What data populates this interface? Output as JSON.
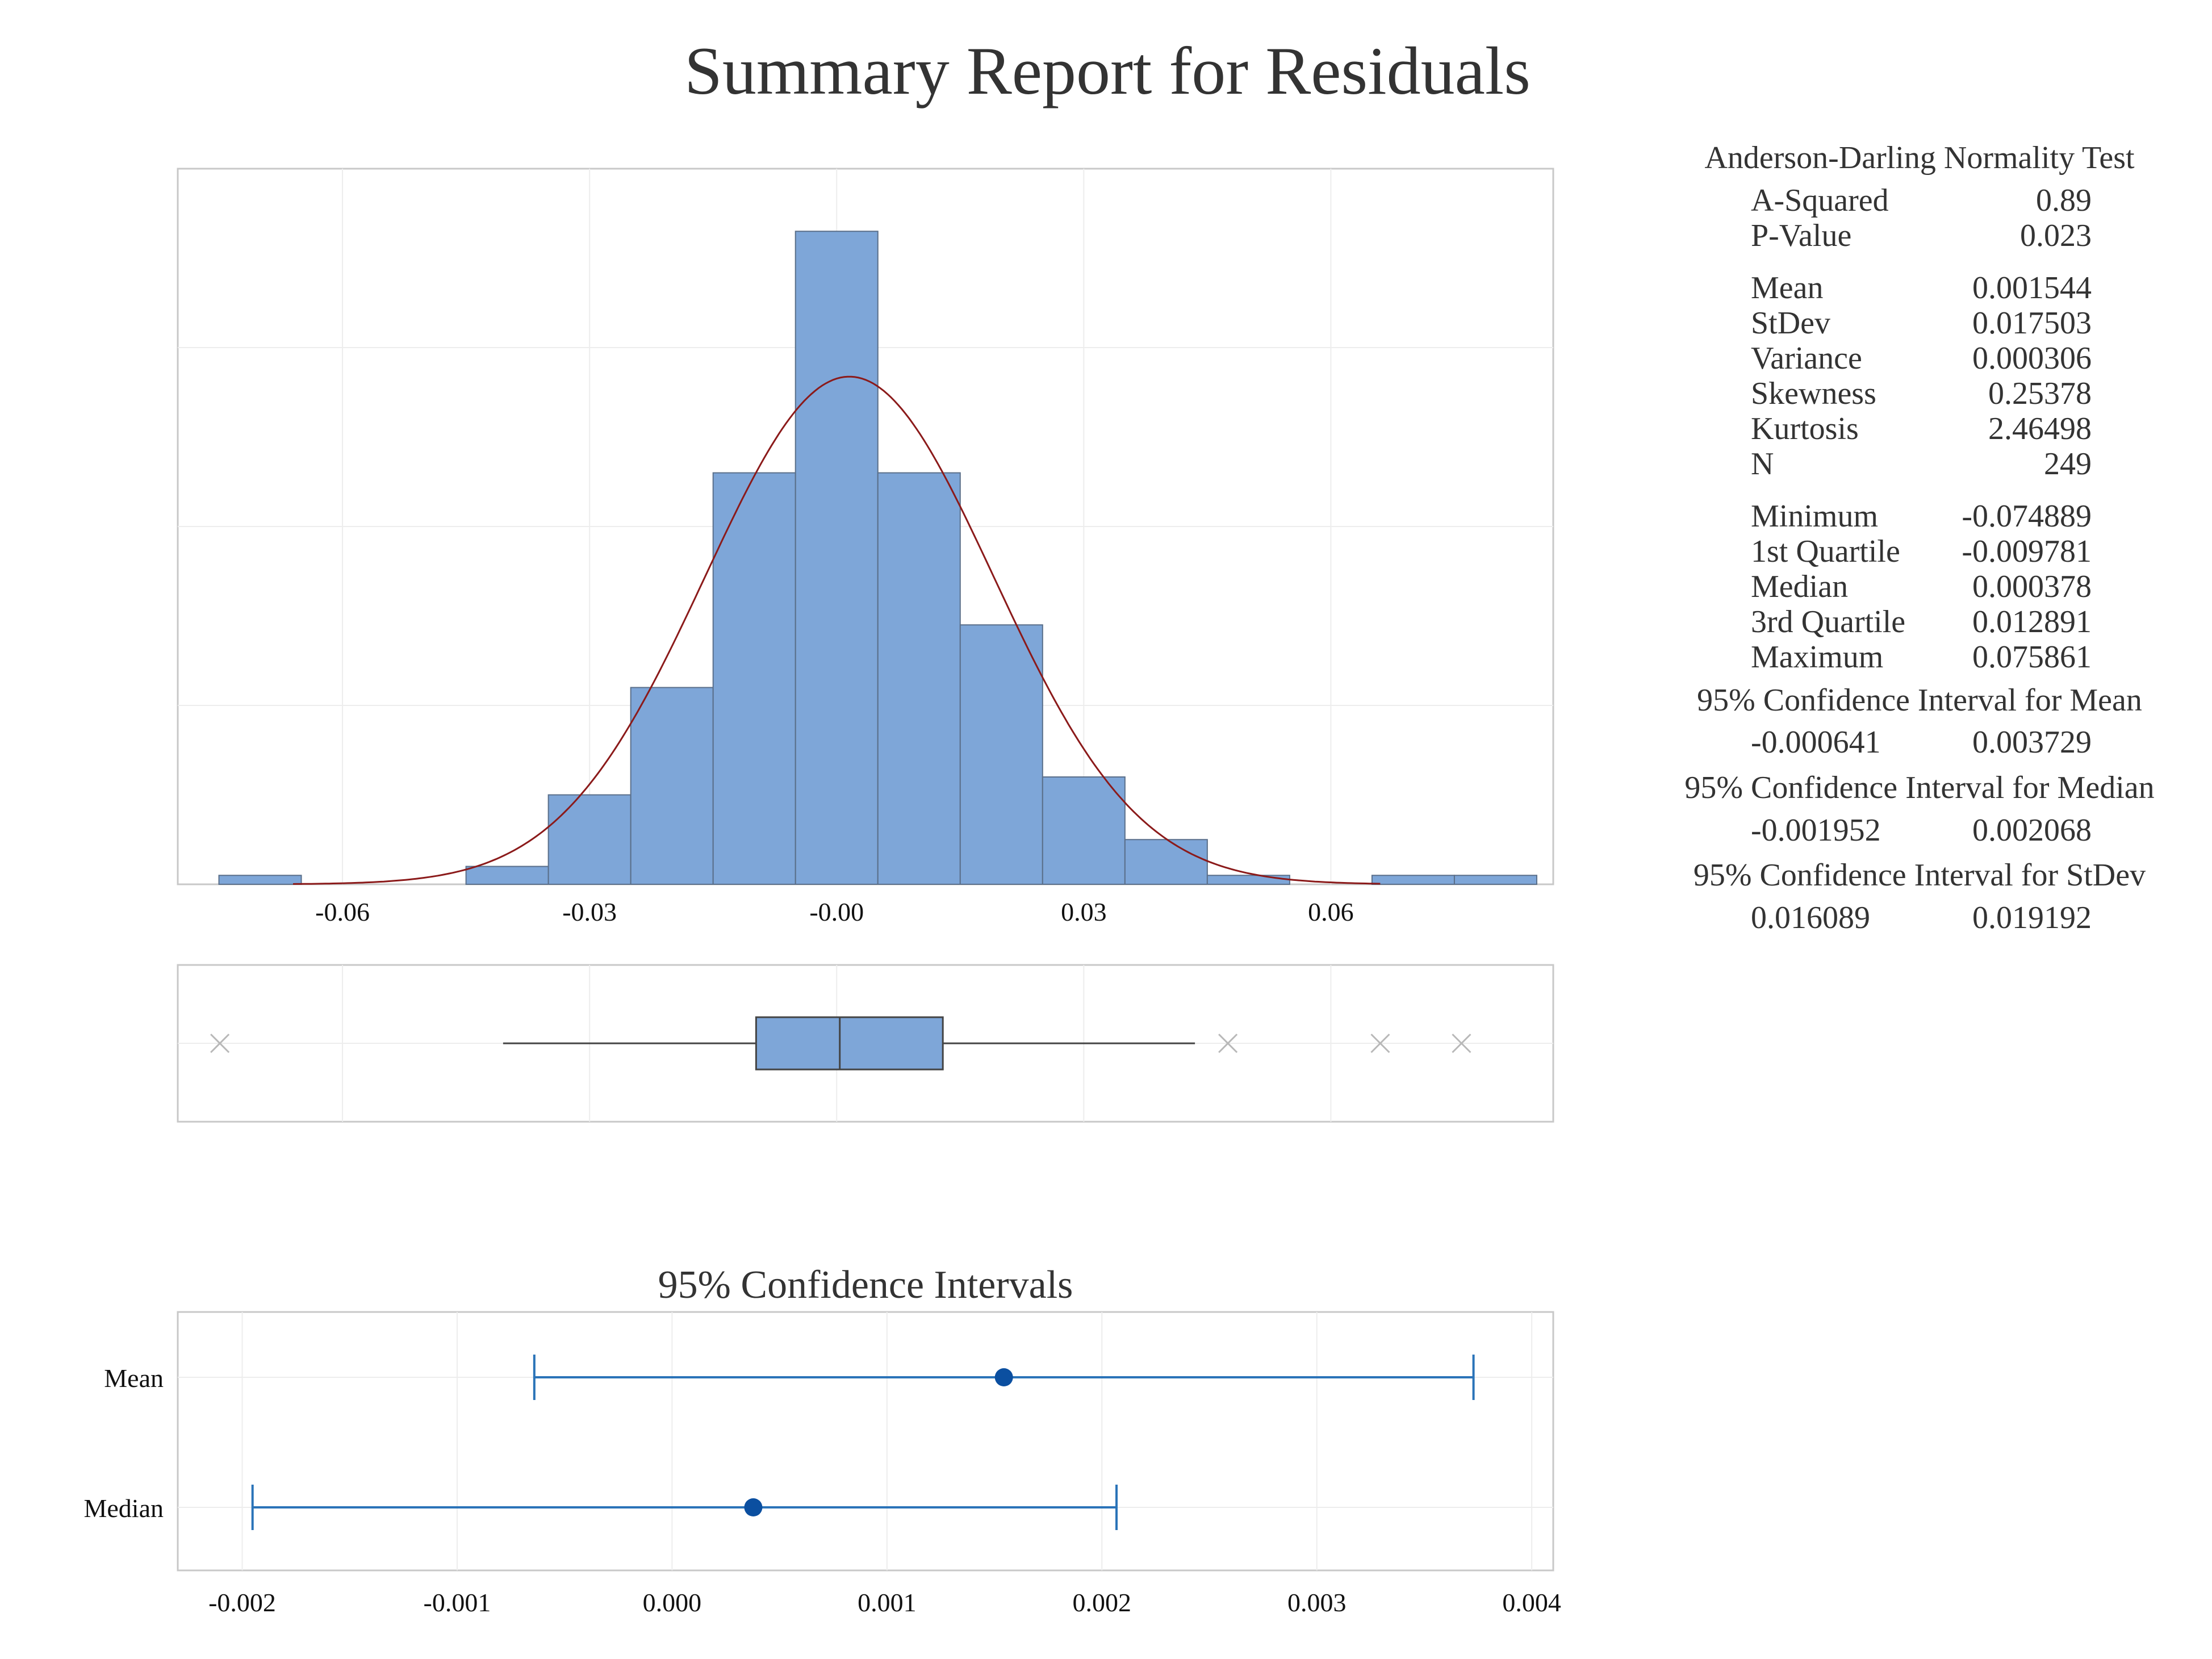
{
  "title": "Summary Report for Residuals",
  "colors": {
    "bar_fill": "#7EA6D8",
    "bar_stroke": "#5a6f8a",
    "normal_curve": "#8B1A1A",
    "ci_line": "#2A73B8",
    "ci_point": "#0B4FA0",
    "outlier": "#b8b8b8",
    "frame": "#c8c8c8",
    "grid": "#ededed"
  },
  "chart_data": [
    {
      "type": "bar",
      "name": "histogram",
      "bin_width": 0.01,
      "bins": [
        {
          "x0": -0.075,
          "x1": -0.065,
          "count": 1
        },
        {
          "x0": -0.065,
          "x1": -0.055,
          "count": 0
        },
        {
          "x0": -0.055,
          "x1": -0.045,
          "count": 0
        },
        {
          "x0": -0.045,
          "x1": -0.035,
          "count": 2
        },
        {
          "x0": -0.035,
          "x1": -0.025,
          "count": 10
        },
        {
          "x0": -0.025,
          "x1": -0.015,
          "count": 22
        },
        {
          "x0": -0.015,
          "x1": -0.005,
          "count": 46
        },
        {
          "x0": -0.005,
          "x1": 0.005,
          "count": 73
        },
        {
          "x0": 0.005,
          "x1": 0.015,
          "count": 46
        },
        {
          "x0": 0.015,
          "x1": 0.025,
          "count": 29
        },
        {
          "x0": 0.025,
          "x1": 0.035,
          "count": 12
        },
        {
          "x0": 0.035,
          "x1": 0.045,
          "count": 5
        },
        {
          "x0": 0.045,
          "x1": 0.055,
          "count": 1
        },
        {
          "x0": 0.055,
          "x1": 0.065,
          "count": 0
        },
        {
          "x0": 0.065,
          "x1": 0.075,
          "count": 1
        },
        {
          "x0": 0.075,
          "x1": 0.085,
          "count": 1
        }
      ],
      "xlim": [
        -0.08,
        0.087
      ],
      "ylim": [
        0,
        80
      ],
      "xticks": [
        -0.06,
        -0.03,
        0.0,
        0.03,
        0.06
      ],
      "xtick_labels": [
        "-0.06",
        "-0.03",
        "-0.00",
        "0.03",
        "0.06"
      ],
      "normal_curve": {
        "mean": 0.001544,
        "stdev": 0.017503,
        "n": 249
      },
      "grid": true
    },
    {
      "type": "boxplot",
      "name": "boxplot",
      "xlim": [
        -0.08,
        0.087
      ],
      "q1": -0.009781,
      "median": 0.000378,
      "q3": 0.012891,
      "whisker_low": -0.0405,
      "whisker_high": 0.0435,
      "outliers": [
        -0.074889,
        0.0475,
        0.066,
        0.075861
      ]
    },
    {
      "type": "errorbar",
      "name": "confidence-intervals",
      "title": "95% Confidence Intervals",
      "categories": [
        "Mean",
        "Median"
      ],
      "points": [
        0.001544,
        0.000378
      ],
      "lower": [
        -0.000641,
        -0.001952
      ],
      "upper": [
        0.003729,
        0.002068
      ],
      "xlim": [
        -0.0023,
        0.0041
      ],
      "xticks": [
        -0.002,
        -0.001,
        0.0,
        0.001,
        0.002,
        0.003,
        0.004
      ],
      "xtick_labels": [
        "-0.002",
        "-0.001",
        "0.000",
        "0.001",
        "0.002",
        "0.003",
        "0.004"
      ],
      "grid": true
    }
  ],
  "stats": {
    "ad_title": "Anderson-Darling Normality Test",
    "group1": [
      {
        "label": "A-Squared",
        "value": "0.89"
      },
      {
        "label": "P-Value",
        "value": "0.023"
      }
    ],
    "group2": [
      {
        "label": "Mean",
        "value": "0.001544"
      },
      {
        "label": "StDev",
        "value": "0.017503"
      },
      {
        "label": "Variance",
        "value": "0.000306"
      },
      {
        "label": "Skewness",
        "value": "0.25378"
      },
      {
        "label": "Kurtosis",
        "value": "2.46498"
      },
      {
        "label": "N",
        "value": "249"
      }
    ],
    "group3": [
      {
        "label": "Minimum",
        "value": "-0.074889"
      },
      {
        "label": "1st Quartile",
        "value": "-0.009781"
      },
      {
        "label": "Median",
        "value": "0.000378"
      },
      {
        "label": "3rd Quartile",
        "value": "0.012891"
      },
      {
        "label": "Maximum",
        "value": "0.075861"
      }
    ],
    "ci_mean": {
      "title": "95% Confidence Interval for Mean",
      "low": "-0.000641",
      "high": "0.003729"
    },
    "ci_median": {
      "title": "95% Confidence Interval for Median",
      "low": "-0.001952",
      "high": "0.002068"
    },
    "ci_stdev": {
      "title": "95% Confidence Interval for StDev",
      "low": "0.016089",
      "high": "0.019192"
    }
  }
}
